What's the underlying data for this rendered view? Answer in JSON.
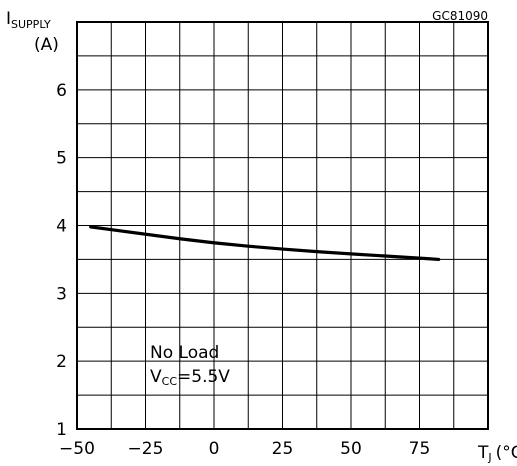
{
  "chart_data": {
    "type": "line",
    "figure_code": "GC81090",
    "ylabel_main": "I",
    "ylabel_sub": "SUPPLY",
    "ylabel_unit": "(A)",
    "xlabel_main": "T",
    "xlabel_sub": "J",
    "xlabel_unit": "(°C)",
    "xlim": [
      -50,
      100
    ],
    "ylim": [
      1,
      7
    ],
    "x_gridlines": [
      -50,
      -37.5,
      -25,
      -12.5,
      0,
      12.5,
      25,
      37.5,
      50,
      62.5,
      75,
      87.5,
      100
    ],
    "y_gridlines": [
      1,
      1.5,
      2,
      2.5,
      3,
      3.5,
      4,
      4.5,
      5,
      5.5,
      6,
      6.5,
      7
    ],
    "x_tick_labels": [
      {
        "value": -50,
        "label": "−50"
      },
      {
        "value": -25,
        "label": "−25"
      },
      {
        "value": 0,
        "label": "0"
      },
      {
        "value": 25,
        "label": "25"
      },
      {
        "value": 50,
        "label": "50"
      },
      {
        "value": 75,
        "label": "75"
      }
    ],
    "y_tick_labels": [
      {
        "value": 1,
        "label": "1"
      },
      {
        "value": 2,
        "label": "2"
      },
      {
        "value": 3,
        "label": "3"
      },
      {
        "value": 4,
        "label": "4"
      },
      {
        "value": 5,
        "label": "5"
      },
      {
        "value": 6,
        "label": "6"
      }
    ],
    "series": [
      {
        "x": [
          -45,
          -25,
          0,
          25,
          50,
          75,
          82
        ],
        "y": [
          3.98,
          3.87,
          3.74,
          3.65,
          3.58,
          3.52,
          3.5
        ]
      }
    ],
    "annotation": {
      "line1": "No Load",
      "line2_main": "V",
      "line2_sub": "CC",
      "line2_value": "=5.5V"
    },
    "grid": true
  }
}
